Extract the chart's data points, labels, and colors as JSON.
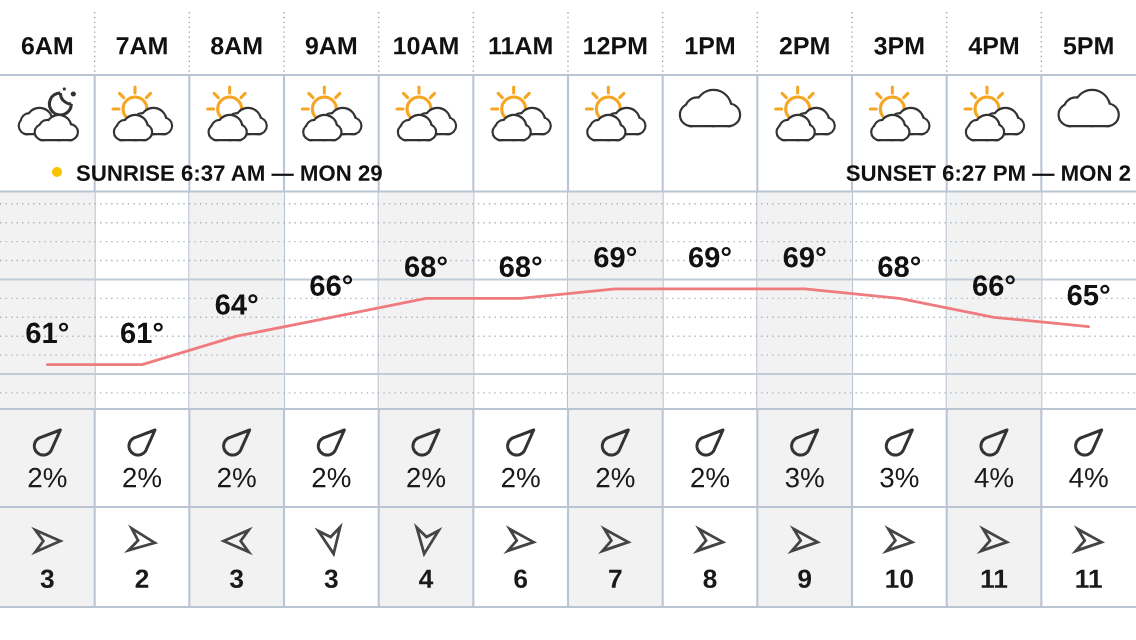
{
  "chart_data": [
    {
      "type": "line",
      "categories": [
        "6AM",
        "7AM",
        "8AM",
        "9AM",
        "10AM",
        "11AM",
        "12PM",
        "1PM",
        "2PM",
        "3PM",
        "4PM",
        "5PM"
      ],
      "values": [
        61,
        61,
        64,
        66,
        68,
        68,
        69,
        69,
        69,
        68,
        66,
        65
      ],
      "color": "#ef7b7e",
      "value_labels": [
        "61°",
        "61°",
        "64°",
        "66°",
        "68°",
        "68°",
        "69°",
        "69°",
        "69°",
        "68°",
        "66°",
        "65°"
      ],
      "ylim": [
        56.3,
        79.3
      ],
      "yticks": [
        {
          "value": 58,
          "label": null
        },
        {
          "value": 62,
          "label": null
        },
        {
          "value": 64,
          "label": null
        },
        {
          "value": 66,
          "label": null
        },
        {
          "value": 68,
          "label": null
        },
        {
          "value": 72,
          "label": null
        },
        {
          "value": 74,
          "label": null
        },
        {
          "value": 76,
          "label": null
        },
        {
          "value": 78,
          "label": null
        }
      ],
      "tick_labels": "x",
      "grid": "y",
      "ref_lines": [
        {
          "axis": "y",
          "value": 60,
          "color": "#c2ccd8",
          "line_style": "solid"
        },
        {
          "axis": "y",
          "value": 70,
          "color": "#c2ccd8",
          "line_style": "solid"
        }
      ],
      "bands": [
        {
          "axis": "x",
          "from": "6AM",
          "to": "6AM",
          "color": "#f2f2f2"
        },
        {
          "axis": "x",
          "from": "8AM",
          "to": "8AM",
          "color": "#f2f2f2"
        },
        {
          "axis": "x",
          "from": "10AM",
          "to": "10AM",
          "color": "#f2f2f2"
        },
        {
          "axis": "x",
          "from": "12PM",
          "to": "12PM",
          "color": "#f2f2f2"
        },
        {
          "axis": "x",
          "from": "2PM",
          "to": "2PM",
          "color": "#f2f2f2"
        },
        {
          "axis": "x",
          "from": "4PM",
          "to": "4PM",
          "color": "#f2f2f2"
        }
      ],
      "annotations": [
        "SUNRISE 6:37 AM — MON 29",
        "SUNSET 6:27 PM — MON 2"
      ]
    },
    {
      "type": "other",
      "values": [
        2,
        2,
        2,
        2,
        2,
        2,
        2,
        2,
        3,
        3,
        4,
        4
      ],
      "value_labels": [
        "2%",
        "2%",
        "2%",
        "2%",
        "2%",
        "2%",
        "2%",
        "2%",
        "3%",
        "3%",
        "4%",
        "4%"
      ]
    },
    {
      "type": "other",
      "values": [
        3,
        2,
        3,
        3,
        4,
        6,
        7,
        8,
        9,
        10,
        11,
        11
      ],
      "data_labels": true
    }
  ]
}
